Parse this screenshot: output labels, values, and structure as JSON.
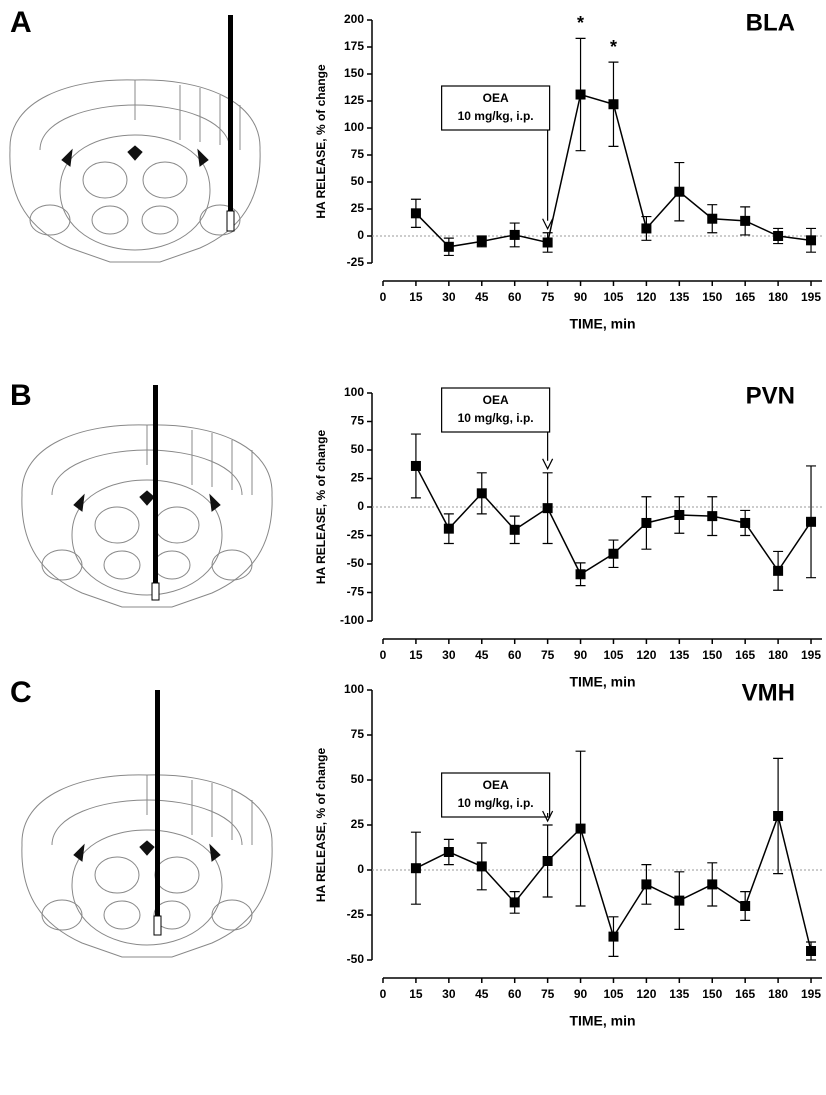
{
  "chart_data": [
    {
      "type": "line",
      "panel_label": "A",
      "title": "BLA",
      "y_label": "HA RELEASE, % of change",
      "x_label": "TIME, min",
      "x": [
        15,
        30,
        45,
        60,
        75,
        90,
        105,
        120,
        135,
        150,
        165,
        180,
        195
      ],
      "values": [
        21,
        -10,
        -5,
        1,
        -6,
        131,
        122,
        7,
        41,
        16,
        14,
        0,
        -4
      ],
      "errors": [
        13,
        8,
        5,
        11,
        9,
        52,
        39,
        11,
        27,
        13,
        13,
        7,
        11
      ],
      "color": "#000000",
      "xlim": [
        0,
        200
      ],
      "xticks": [
        0,
        15,
        30,
        45,
        60,
        75,
        90,
        105,
        120,
        135,
        150,
        165,
        180,
        195
      ],
      "ylim": [
        -25,
        200
      ],
      "yticks": [
        -25,
        0,
        25,
        50,
        75,
        100,
        125,
        150,
        175,
        200
      ],
      "reference_line": 0,
      "annotation": {
        "text": [
          "OEA",
          "10 mg/kg, i.p."
        ],
        "x": 75
      },
      "markers": [
        {
          "x": 90,
          "text": "*"
        },
        {
          "x": 105,
          "text": "*"
        }
      ]
    },
    {
      "type": "line",
      "panel_label": "B",
      "title": "PVN",
      "y_label": "HA RELEASE, % of change",
      "x_label": "TIME, min",
      "x": [
        15,
        30,
        45,
        60,
        75,
        90,
        105,
        120,
        135,
        150,
        165,
        180,
        195
      ],
      "values": [
        36,
        -19,
        12,
        -20,
        -1,
        -59,
        -41,
        -14,
        -7,
        -8,
        -14,
        -56,
        -13
      ],
      "errors": [
        28,
        13,
        18,
        12,
        31,
        10,
        12,
        23,
        16,
        17,
        11,
        17,
        49
      ],
      "color": "#000000",
      "xlim": [
        0,
        200
      ],
      "xticks": [
        0,
        15,
        30,
        45,
        60,
        75,
        90,
        105,
        120,
        135,
        150,
        165,
        180,
        195
      ],
      "ylim": [
        -100,
        100
      ],
      "yticks": [
        -100,
        -75,
        -50,
        -25,
        0,
        25,
        50,
        75,
        100
      ],
      "reference_line": 0,
      "annotation": {
        "text": [
          "OEA",
          "10 mg/kg, i.p."
        ],
        "x": 75
      }
    },
    {
      "type": "line",
      "panel_label": "C",
      "title": "VMH",
      "y_label": "HA RELEASE, % of change",
      "x_label": "TIME, min",
      "x": [
        15,
        30,
        45,
        60,
        75,
        90,
        105,
        120,
        135,
        150,
        165,
        180,
        195
      ],
      "values": [
        1,
        10,
        2,
        -18,
        5,
        23,
        -37,
        -8,
        -17,
        -8,
        -20,
        30,
        -45
      ],
      "errors": [
        20,
        7,
        13,
        6,
        20,
        43,
        11,
        11,
        16,
        12,
        8,
        32,
        5
      ],
      "color": "#000000",
      "xlim": [
        0,
        200
      ],
      "xticks": [
        0,
        15,
        30,
        45,
        60,
        75,
        90,
        105,
        120,
        135,
        150,
        165,
        180,
        195
      ],
      "ylim": [
        -50,
        100
      ],
      "yticks": [
        -50,
        -25,
        0,
        25,
        50,
        75,
        100
      ],
      "reference_line": 0,
      "annotation": {
        "text": [
          "OEA",
          "10 mg/kg, i.p."
        ],
        "x": 75
      }
    }
  ]
}
